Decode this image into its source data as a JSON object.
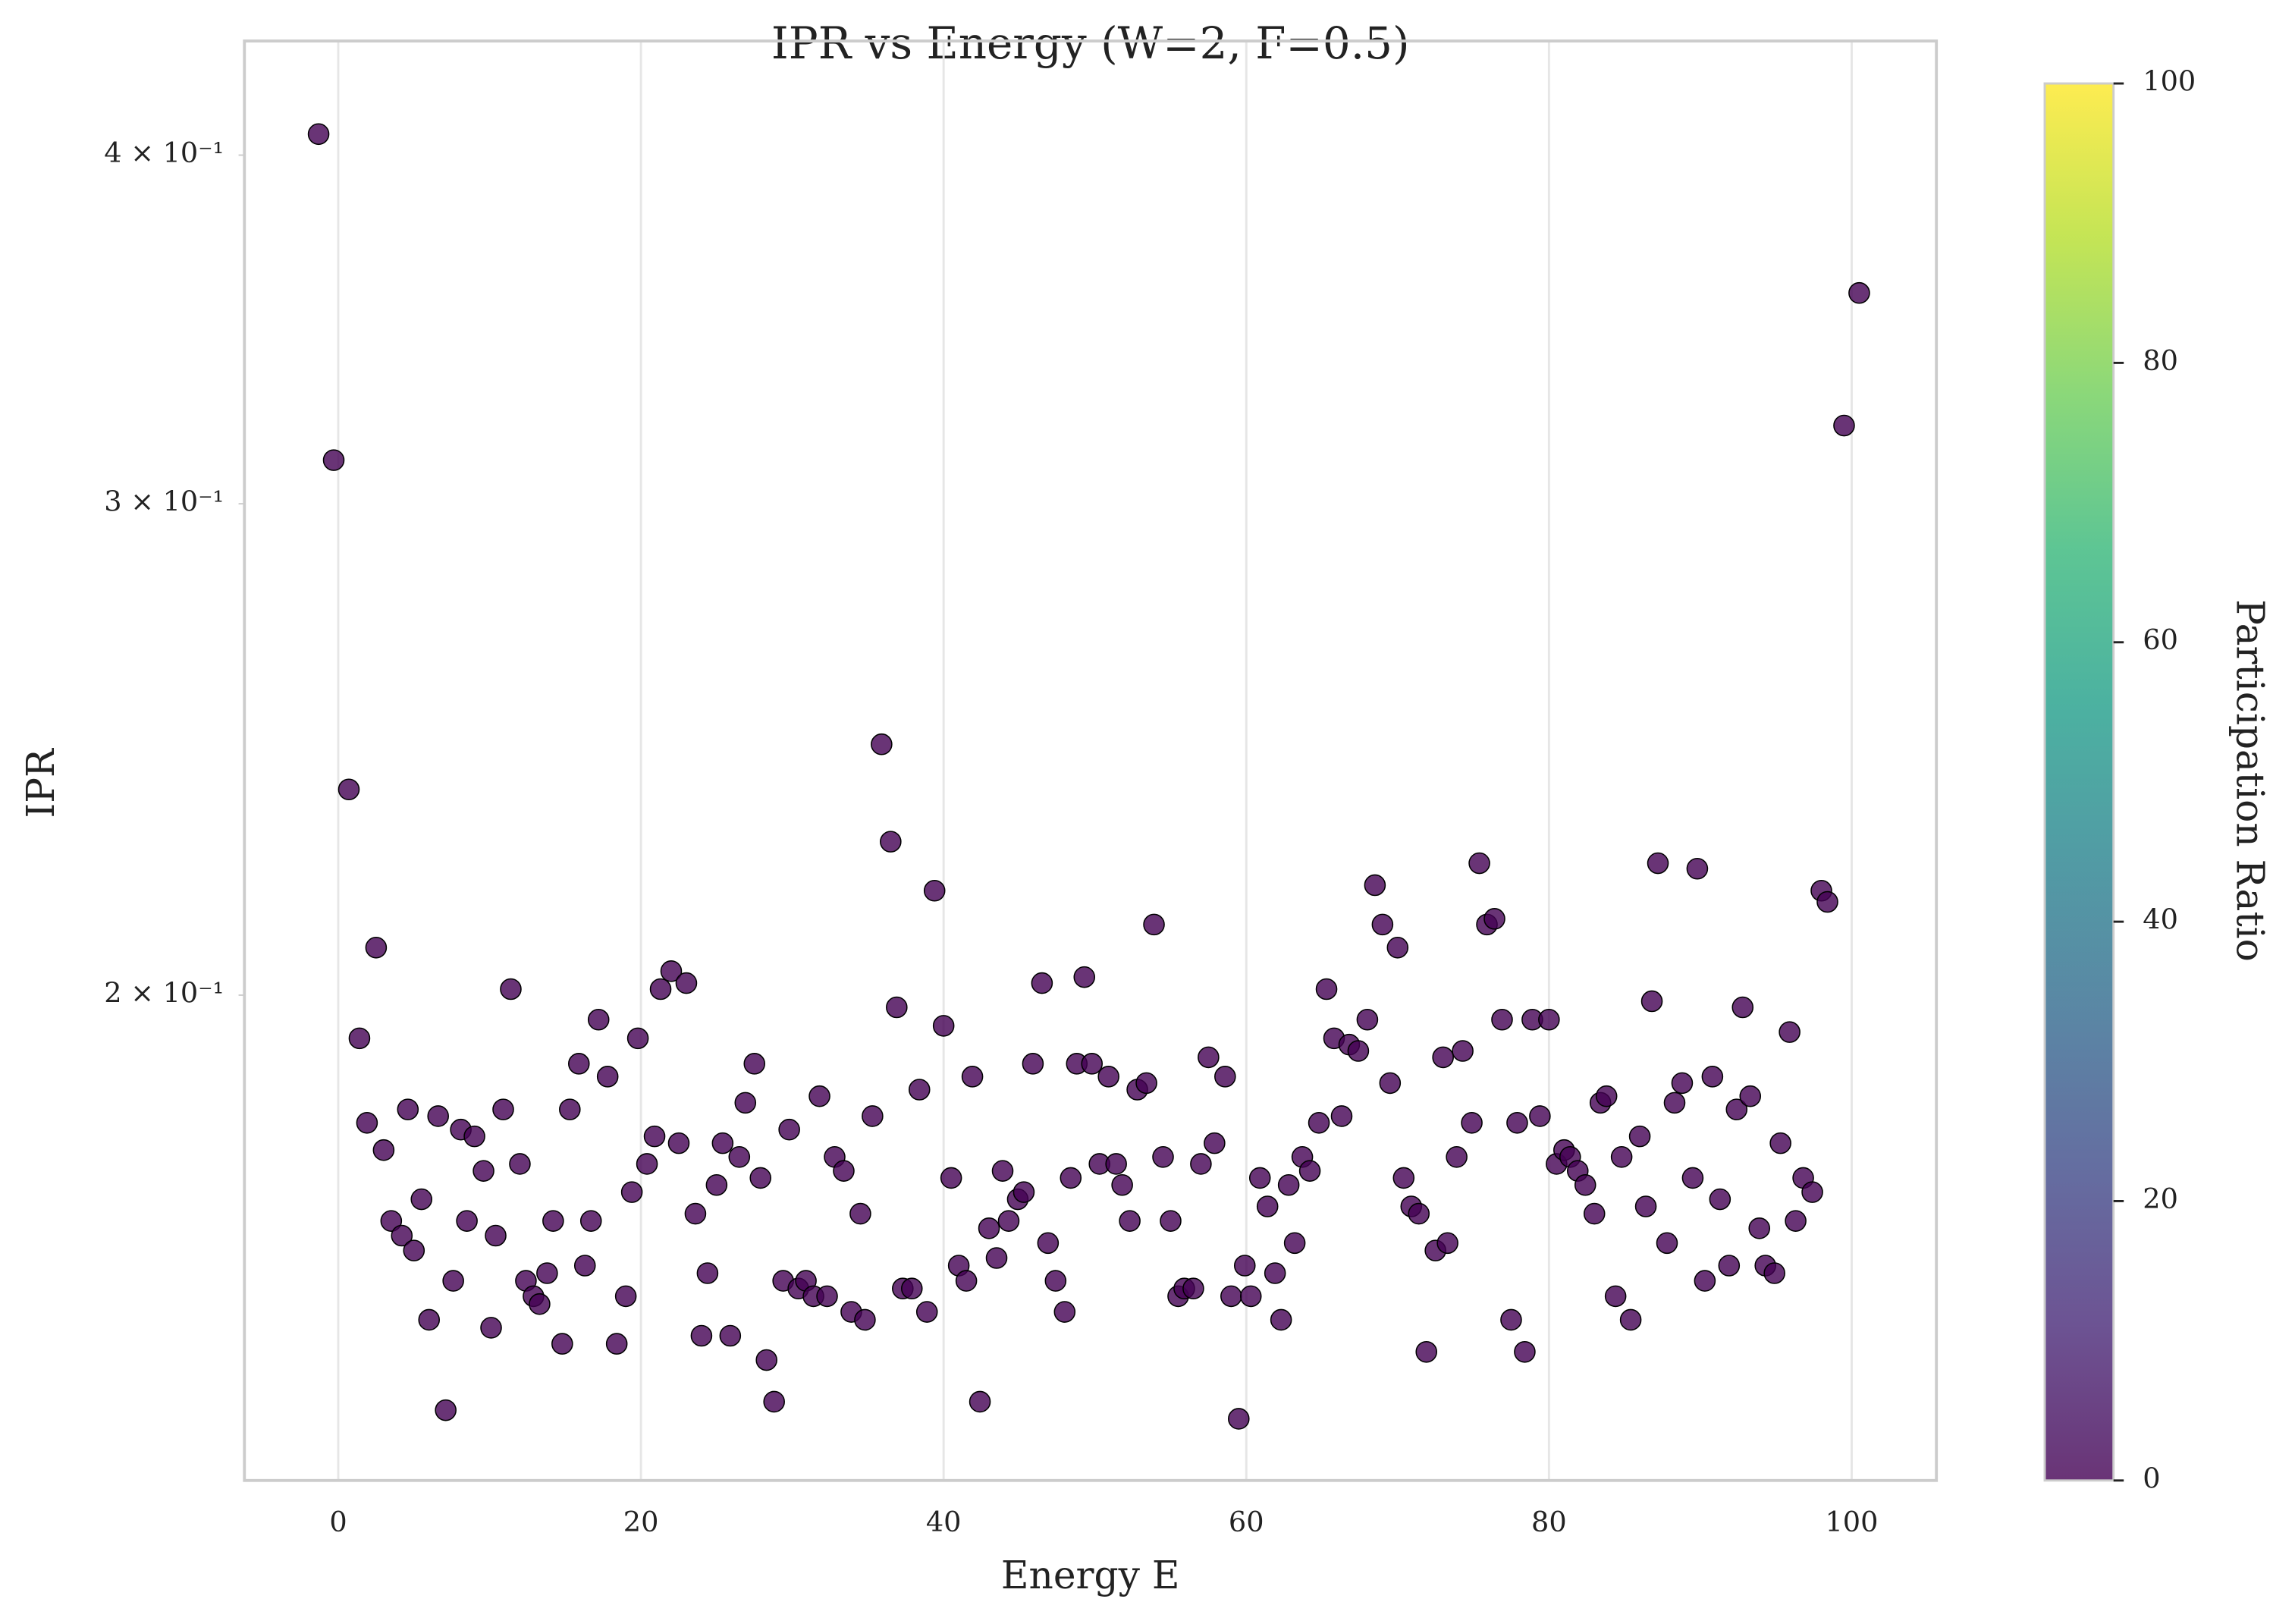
{
  "chart_data": {
    "type": "scatter",
    "title": "IPR vs Energy (W=2, F=0.5)",
    "x_label": "Energy E",
    "y_label": "IPR",
    "x": [
      -1.3,
      -0.3,
      0.7,
      1.4,
      1.9,
      2.5,
      3.0,
      3.5,
      4.2,
      4.6,
      5.0,
      5.5,
      6.0,
      6.6,
      7.1,
      7.6,
      8.1,
      8.5,
      9.0,
      9.6,
      10.1,
      10.4,
      10.9,
      11.4,
      12.0,
      12.4,
      12.9,
      13.3,
      13.8,
      14.2,
      14.8,
      15.3,
      15.9,
      16.3,
      16.7,
      17.2,
      17.8,
      18.4,
      19.0,
      19.4,
      19.8,
      20.4,
      20.9,
      21.3,
      22.0,
      22.5,
      23.0,
      23.6,
      24.0,
      24.4,
      25.0,
      25.4,
      25.9,
      26.5,
      26.9,
      27.5,
      27.9,
      28.3,
      28.8,
      29.4,
      29.8,
      30.4,
      30.9,
      31.4,
      31.8,
      32.3,
      32.8,
      33.4,
      33.9,
      34.5,
      34.8,
      35.3,
      35.9,
      36.5,
      36.9,
      37.3,
      37.9,
      38.4,
      38.9,
      39.4,
      40.0,
      40.5,
      41.0,
      41.5,
      41.9,
      42.4,
      43.0,
      43.5,
      43.9,
      44.3,
      44.9,
      45.3,
      45.9,
      46.5,
      46.9,
      47.4,
      48.0,
      48.4,
      48.8,
      49.3,
      49.8,
      50.3,
      50.9,
      51.4,
      51.8,
      52.3,
      52.8,
      53.4,
      53.9,
      54.5,
      55.0,
      55.5,
      55.9,
      56.5,
      57.0,
      57.5,
      57.9,
      58.6,
      59.0,
      59.5,
      59.9,
      60.3,
      60.9,
      61.4,
      61.9,
      62.3,
      62.8,
      63.2,
      63.7,
      64.2,
      64.8,
      65.3,
      65.8,
      66.3,
      66.8,
      67.4,
      68.0,
      68.5,
      69.0,
      69.5,
      70.0,
      70.4,
      70.9,
      71.4,
      71.9,
      72.5,
      73.0,
      73.3,
      73.9,
      74.3,
      74.9,
      75.4,
      75.9,
      76.4,
      76.9,
      77.5,
      77.9,
      78.4,
      78.9,
      79.4,
      80.0,
      80.5,
      81.0,
      81.4,
      81.9,
      82.4,
      83.0,
      83.4,
      83.8,
      84.4,
      84.8,
      85.4,
      86.0,
      86.4,
      86.8,
      87.2,
      87.8,
      88.3,
      88.8,
      89.5,
      89.8,
      90.3,
      90.8,
      91.3,
      91.9,
      92.4,
      92.8,
      93.3,
      93.9,
      94.3,
      94.9,
      95.3,
      95.9,
      96.3,
      96.8,
      97.4,
      98.0,
      98.4,
      99.5,
      100.5
    ],
    "values": [
      0.407,
      0.311,
      0.237,
      0.193,
      0.18,
      0.208,
      0.176,
      0.166,
      0.164,
      0.182,
      0.162,
      0.169,
      0.153,
      0.181,
      0.142,
      0.158,
      0.179,
      0.166,
      0.178,
      0.173,
      0.152,
      0.164,
      0.182,
      0.201,
      0.174,
      0.158,
      0.156,
      0.155,
      0.159,
      0.166,
      0.15,
      0.182,
      0.189,
      0.16,
      0.166,
      0.196,
      0.187,
      0.15,
      0.156,
      0.17,
      0.193,
      0.174,
      0.178,
      0.201,
      0.204,
      0.177,
      0.202,
      0.167,
      0.151,
      0.159,
      0.171,
      0.177,
      0.151,
      0.175,
      0.183,
      0.189,
      0.172,
      0.148,
      0.143,
      0.158,
      0.179,
      0.157,
      0.158,
      0.156,
      0.184,
      0.156,
      0.175,
      0.173,
      0.154,
      0.167,
      0.153,
      0.181,
      0.246,
      0.227,
      0.198,
      0.157,
      0.157,
      0.185,
      0.154,
      0.218,
      0.195,
      0.172,
      0.16,
      0.158,
      0.187,
      0.143,
      0.165,
      0.161,
      0.173,
      0.166,
      0.169,
      0.17,
      0.189,
      0.202,
      0.163,
      0.158,
      0.154,
      0.172,
      0.189,
      0.203,
      0.189,
      0.174,
      0.187,
      0.174,
      0.171,
      0.166,
      0.185,
      0.186,
      0.212,
      0.175,
      0.166,
      0.156,
      0.157,
      0.157,
      0.174,
      0.19,
      0.177,
      0.187,
      0.156,
      0.141,
      0.16,
      0.156,
      0.172,
      0.168,
      0.159,
      0.153,
      0.171,
      0.163,
      0.175,
      0.173,
      0.18,
      0.201,
      0.193,
      0.181,
      0.192,
      0.191,
      0.196,
      0.219,
      0.212,
      0.186,
      0.208,
      0.172,
      0.168,
      0.167,
      0.149,
      0.162,
      0.19,
      0.163,
      0.175,
      0.191,
      0.18,
      0.223,
      0.212,
      0.213,
      0.196,
      0.153,
      0.18,
      0.149,
      0.196,
      0.181,
      0.196,
      0.174,
      0.176,
      0.175,
      0.173,
      0.171,
      0.167,
      0.183,
      0.184,
      0.156,
      0.175,
      0.153,
      0.178,
      0.168,
      0.199,
      0.223,
      0.163,
      0.183,
      0.186,
      0.172,
      0.222,
      0.158,
      0.187,
      0.169,
      0.16,
      0.182,
      0.198,
      0.184,
      0.165,
      0.16,
      0.159,
      0.177,
      0.194,
      0.166,
      0.172,
      0.17,
      0.218,
      0.216,
      0.32,
      0.357
    ],
    "color": "#440154",
    "alpha": 0.8,
    "xlim": [
      -6.2,
      105.6
    ],
    "xticks": [
      0,
      20,
      40,
      60,
      80,
      100
    ],
    "ylim": [
      0.134,
      0.4395
    ],
    "ylog": true,
    "yticks": [
      {
        "value": 0.2,
        "label": "2 × 10⁻¹"
      },
      {
        "value": 0.3,
        "label": "3 × 10⁻¹"
      },
      {
        "value": 0.4,
        "label": "4 × 10⁻¹"
      }
    ],
    "grid": "x",
    "colorbar": {
      "label": "Participation Ratio",
      "colormap": "viridis",
      "lim": [
        0,
        100
      ],
      "ticks": [
        0,
        20,
        40,
        60,
        80,
        100
      ]
    }
  }
}
